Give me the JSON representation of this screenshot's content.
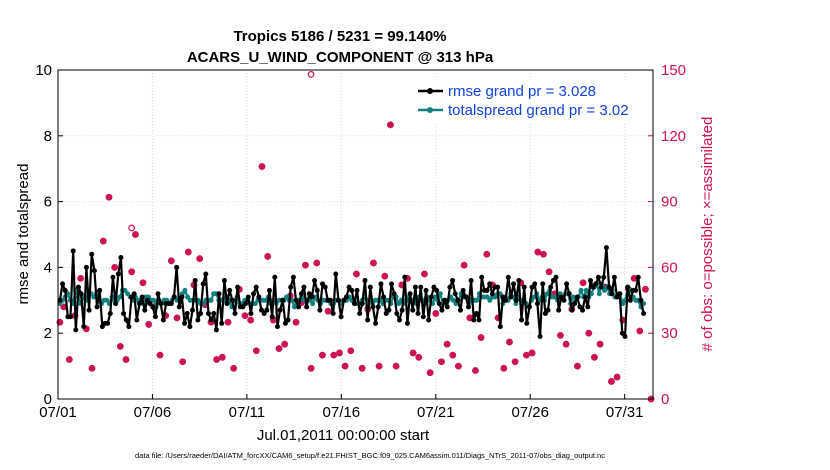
{
  "chart_data": {
    "type": "line",
    "title_line1": "Tropics 5186 / 5231 = 99.140%",
    "title_line2": "ACARS_U_WIND_COMPONENT @ 313 hPa",
    "xlabel": "Jul.01,2011 00:00:00 start",
    "ylabel_left": "rmse and totalspread",
    "ylabel_right": "# of obs: o=possible; ×=assimilated",
    "footnote": "data file: /Users/raeder/DAI/ATM_forcXX/CAM6_setup/f.e21.FHIST_BGC.f09_025.CAM6assim.011/Diags_NTrS_2011-07/obs_diag_output.nc",
    "x_range": [
      0,
      31.5
    ],
    "x_ticks": [
      0,
      5,
      10,
      15,
      20,
      25,
      30
    ],
    "x_tick_labels": [
      "07/01",
      "07/06",
      "07/11",
      "07/16",
      "07/21",
      "07/26",
      "07/31"
    ],
    "ylim_left": [
      0,
      10
    ],
    "yticks_left": [
      "0",
      "2",
      "4",
      "6",
      "8",
      "10"
    ],
    "ylim_right": [
      0,
      150
    ],
    "yticks_right": [
      "0",
      "30",
      "60",
      "90",
      "120",
      "150"
    ],
    "colors": {
      "rmse": "#000000",
      "spread": "#138080",
      "obs": "#cc1155",
      "legend_text": "#1144dd"
    },
    "series": [
      {
        "name": "rmse grand pr = 3.028",
        "values": [
          3.0,
          3.5,
          3.3,
          2.5,
          2.5,
          4.5,
          2.1,
          3.4,
          3.2,
          2.2,
          4.0,
          2.7,
          4.4,
          3.9,
          2.8,
          3.3,
          2.2,
          2.3,
          2.3,
          2.6,
          3.7,
          2.9,
          3.8,
          4.3,
          2.6,
          2.4,
          2.2,
          3.1,
          3.2,
          2.4,
          2.9,
          3.1,
          2.7,
          3.0,
          2.9,
          2.8,
          2.5,
          3.2,
          2.9,
          2.4,
          2.9,
          2.9,
          2.9,
          3.1,
          4.0,
          2.8,
          3.1,
          2.3,
          2.6,
          2.2,
          2.7,
          3.6,
          2.4,
          2.6,
          3.5,
          3.8,
          2.6,
          2.4,
          2.6,
          2.1,
          3.2,
          2.3,
          3.6,
          2.9,
          3.3,
          3.0,
          2.6,
          3.4,
          2.8,
          2.8,
          2.9,
          3.1,
          2.6,
          3.2,
          3.4,
          3.1,
          2.7,
          2.6,
          2.7,
          3.3,
          2.5,
          3.7,
          2.2,
          2.7,
          3.0,
          2.3,
          2.4,
          3.4,
          3.7,
          3.0,
          2.8,
          3.2,
          3.4,
          2.8,
          3.2,
          3.1,
          3.6,
          3.3,
          2.7,
          3.5,
          3.4,
          3.0,
          3.0,
          2.6,
          3.8,
          3.0,
          2.5,
          3.0,
          3.1,
          3.4,
          3.3,
          2.9,
          3.3,
          2.6,
          2.9,
          3.6,
          2.4,
          3.4,
          2.8,
          2.3,
          2.8,
          3.5,
          3.1,
          2.6,
          2.7,
          3.5,
          3.2,
          2.6,
          2.4,
          2.7,
          3.7,
          2.3,
          3.2,
          2.7,
          3.4,
          2.6,
          3.4,
          2.5,
          3.3,
          2.4,
          3.1,
          3.4,
          3.3,
          2.9,
          2.7,
          3.0,
          2.8,
          3.4,
          3.6,
          3.2,
          3.0,
          2.7,
          3.3,
          3.1,
          2.8,
          3.6,
          2.4,
          2.6,
          2.4,
          3.7,
          3.3,
          3.3,
          3.5,
          3.2,
          3.4,
          3.4,
          2.2,
          3.1,
          3.0,
          3.7,
          3.1,
          3.5,
          3.0,
          3.6,
          2.4,
          3.4,
          2.3,
          2.8,
          3.4,
          3.5,
          2.9,
          1.9,
          3.5,
          2.6,
          2.7,
          3.4,
          3.6,
          3.7,
          2.7,
          3.1,
          3.0,
          3.5,
          3.2,
          2.7,
          2.9,
          3.1,
          2.8,
          2.7,
          3.1,
          2.8,
          3.6,
          3.4,
          3.5,
          3.7,
          3.4,
          3.7,
          4.6,
          3.4,
          3.2,
          3.7,
          3.1,
          3.2,
          2.0,
          1.9,
          3.4,
          3.0,
          3.3,
          3.3,
          3.7,
          3.0,
          2.6
        ]
      },
      {
        "name": "totalspread grand pr = 3.02",
        "values": [
          2.9,
          3.0,
          3.1,
          3.2,
          3.0,
          2.9,
          3.3,
          3.1,
          2.9,
          3.1,
          3.0,
          3.3,
          3.2,
          3.1,
          3.2,
          3.0,
          2.9,
          3.0,
          3.0,
          2.9,
          3.1,
          3.0,
          3.0,
          3.1,
          3.3,
          3.3,
          3.2,
          3.1,
          3.0,
          3.1,
          3.0,
          3.0,
          2.9,
          3.1,
          3.1,
          3.0,
          3.0,
          2.8,
          3.0,
          2.9,
          3.0,
          3.0,
          2.9,
          3.0,
          3.1,
          3.0,
          3.0,
          3.2,
          3.3,
          3.1,
          3.0,
          3.0,
          3.0,
          3.0,
          2.9,
          2.9,
          3.0,
          3.0,
          3.0,
          3.2,
          3.2,
          3.0,
          3.0,
          3.0,
          3.1,
          3.0,
          2.8,
          3.0,
          3.1,
          2.9,
          2.9,
          3.0,
          3.0,
          2.9,
          2.9,
          2.9,
          3.0,
          3.0,
          3.0,
          3.0,
          3.1,
          2.9,
          3.0,
          2.9,
          3.0,
          3.0,
          3.0,
          3.1,
          3.0,
          3.0,
          2.8,
          3.0,
          3.0,
          3.1,
          3.0,
          3.0,
          3.0,
          2.9,
          3.1,
          3.0,
          2.9,
          3.0,
          3.0,
          3.0,
          2.9,
          2.9,
          3.0,
          3.0,
          2.9,
          3.0,
          3.0,
          3.1,
          3.0,
          3.0,
          2.9,
          2.9,
          3.0,
          3.1,
          3.0,
          3.0,
          2.9,
          3.0,
          3.0,
          3.0,
          2.9,
          3.0,
          3.0,
          2.9,
          3.1,
          3.1,
          2.9,
          3.0,
          2.9,
          3.0,
          3.1,
          3.0,
          3.0,
          2.9,
          3.1,
          3.0,
          2.9,
          3.1,
          3.0,
          2.9,
          3.1,
          3.0,
          3.2,
          2.9,
          3.0,
          3.0,
          3.1,
          3.0,
          2.9,
          3.0,
          3.2,
          3.1,
          3.1,
          2.9,
          3.0,
          3.0,
          3.0,
          3.2,
          3.1,
          3.1,
          3.1,
          3.0,
          3.1,
          3.1,
          3.2,
          3.2,
          2.9,
          3.1,
          3.0,
          3.2,
          3.1,
          2.9,
          3.1,
          3.0,
          3.0,
          2.9,
          2.8,
          3.0,
          3.1,
          3.2,
          3.0,
          3.1,
          3.0,
          3.2,
          3.3,
          3.1,
          3.1,
          3.0,
          3.2,
          3.1,
          3.2,
          3.2,
          2.9,
          3.1,
          3.0,
          3.1,
          3.3,
          3.1,
          3.3,
          3.1,
          3.2,
          3.4,
          3.5,
          3.2,
          3.5,
          3.3,
          3.4,
          3.2,
          3.3,
          3.1,
          3.1,
          3.2,
          2.9,
          3.0,
          3.4,
          3.3,
          3.1,
          3.0,
          3.0,
          2.8,
          2.9
        ]
      }
    ],
    "obs": {
      "name": "# of obs",
      "x": [
        0.1,
        0.3,
        0.6,
        0.9,
        1.2,
        1.5,
        1.8,
        2.1,
        2.4,
        2.7,
        3.0,
        3.3,
        3.6,
        3.9,
        4.1,
        4.5,
        4.8,
        5.1,
        5.4,
        5.7,
        6.0,
        6.3,
        6.6,
        6.9,
        7.2,
        7.5,
        7.8,
        8.1,
        8.4,
        8.7,
        9.0,
        9.3,
        9.6,
        9.9,
        10.2,
        10.5,
        10.8,
        11.1,
        11.4,
        11.7,
        12.0,
        12.3,
        12.6,
        12.9,
        13.1,
        13.4,
        13.7,
        14.0,
        14.3,
        14.6,
        14.9,
        15.2,
        15.5,
        15.8,
        16.1,
        16.4,
        16.7,
        17.0,
        17.3,
        17.6,
        17.9,
        18.2,
        18.5,
        18.8,
        19.1,
        19.4,
        19.7,
        20.0,
        20.3,
        20.6,
        20.9,
        21.2,
        21.5,
        21.8,
        22.1,
        22.4,
        22.7,
        23.0,
        23.3,
        23.6,
        23.9,
        24.2,
        24.5,
        24.8,
        25.1,
        25.4,
        25.7,
        26.0,
        26.3,
        26.6,
        26.9,
        27.2,
        27.5,
        27.8,
        28.1,
        28.4,
        28.7,
        29.0,
        29.3,
        29.6,
        29.9,
        30.2,
        30.5,
        30.8,
        31.1,
        31.4
      ],
      "values": [
        35,
        42,
        18,
        38,
        55,
        32,
        14,
        48,
        72,
        92,
        60,
        24,
        18,
        58,
        75,
        53,
        34,
        42,
        20,
        38,
        63,
        37,
        17,
        67,
        52,
        64,
        43,
        35,
        18,
        19,
        35,
        14,
        50,
        38,
        36,
        22,
        106,
        65,
        36,
        23,
        25,
        47,
        35,
        44,
        61,
        14,
        62,
        20,
        40,
        20,
        21,
        15,
        22,
        57,
        14,
        41,
        62,
        15,
        56,
        125,
        15,
        52,
        55,
        21,
        19,
        57,
        12,
        39,
        17,
        25,
        20,
        15,
        61,
        37,
        13,
        28,
        66,
        52,
        37,
        14,
        26,
        17,
        53,
        20,
        21,
        67,
        66,
        58,
        48,
        29,
        25,
        41,
        15,
        53,
        30,
        19,
        25,
        51,
        8,
        10,
        36,
        50,
        55,
        31,
        50,
        0
      ],
      "possible_extra": [
        {
          "x": 13.4,
          "value": 148
        },
        {
          "x": 3.9,
          "value": 78
        }
      ]
    },
    "legend_position": "top-right"
  }
}
